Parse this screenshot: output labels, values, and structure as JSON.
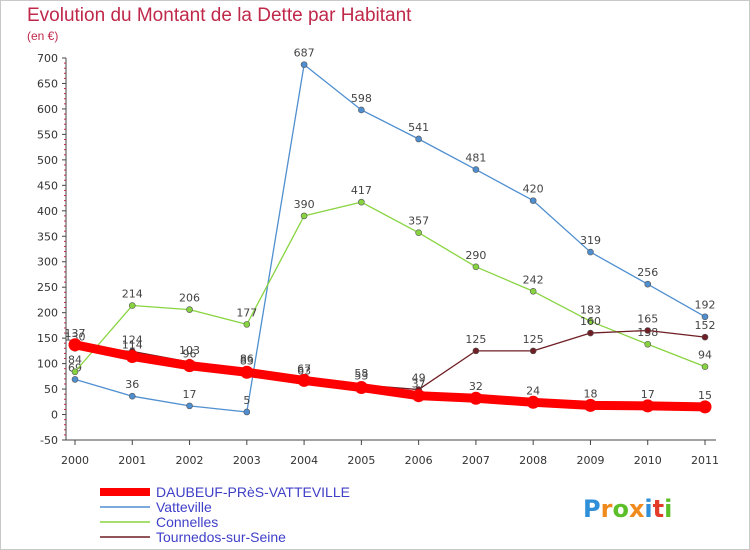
{
  "title": "Evolution du Montant de la Dette par Habitant",
  "subtitle": "(en €)",
  "logo": "Proxiti",
  "chart_data": {
    "type": "line",
    "title": "Evolution du Montant de la Dette par Habitant",
    "subtitle": "(en €)",
    "x": [
      "2000",
      "2001",
      "2002",
      "2003",
      "2004",
      "2005",
      "2006",
      "2007",
      "2008",
      "2009",
      "2010",
      "2011"
    ],
    "ylim": [
      -50,
      700
    ],
    "yticks": [
      -50,
      0,
      50,
      100,
      150,
      200,
      250,
      300,
      350,
      400,
      450,
      500,
      550,
      600,
      650,
      700
    ],
    "grid": false,
    "legend": "bottom-left",
    "series": [
      {
        "name": "Vatteville",
        "color": "#4f8fd0",
        "values": [
          69,
          36,
          17,
          5,
          687,
          598,
          541,
          481,
          420,
          319,
          256,
          192
        ],
        "labels": [
          "69",
          "36",
          "17",
          "5",
          "687",
          "598",
          "541",
          "481",
          "420",
          "319",
          "256",
          "192"
        ]
      },
      {
        "name": "Connelles",
        "color": "#88d440",
        "values": [
          84,
          214,
          206,
          177,
          390,
          417,
          357,
          290,
          242,
          183,
          138,
          94
        ],
        "labels": [
          "84",
          "214",
          "206",
          "177",
          "390",
          "417",
          "357",
          "290",
          "242",
          "183",
          "138",
          "94"
        ]
      },
      {
        "name": "Tournedos-sur-Seine",
        "color": "#6e1e24",
        "values": [
          130,
          124,
          103,
          86,
          63,
          58,
          49,
          125,
          125,
          160,
          165,
          152
        ],
        "labels": [
          "130",
          "124",
          "103",
          "86",
          "63",
          "58",
          "49",
          "125",
          "125",
          "160",
          "165",
          "152"
        ]
      },
      {
        "name": "DAUBEUF-PRèS-VATTEVILLE",
        "color": "#ff0000",
        "values": [
          137,
          114,
          96,
          83,
          67,
          53,
          37,
          32,
          24,
          18,
          17,
          15
        ],
        "labels": [
          "137",
          "114",
          "96",
          "83",
          "67",
          "53",
          "37",
          "32",
          "24",
          "18",
          "17",
          "15"
        ]
      }
    ]
  }
}
